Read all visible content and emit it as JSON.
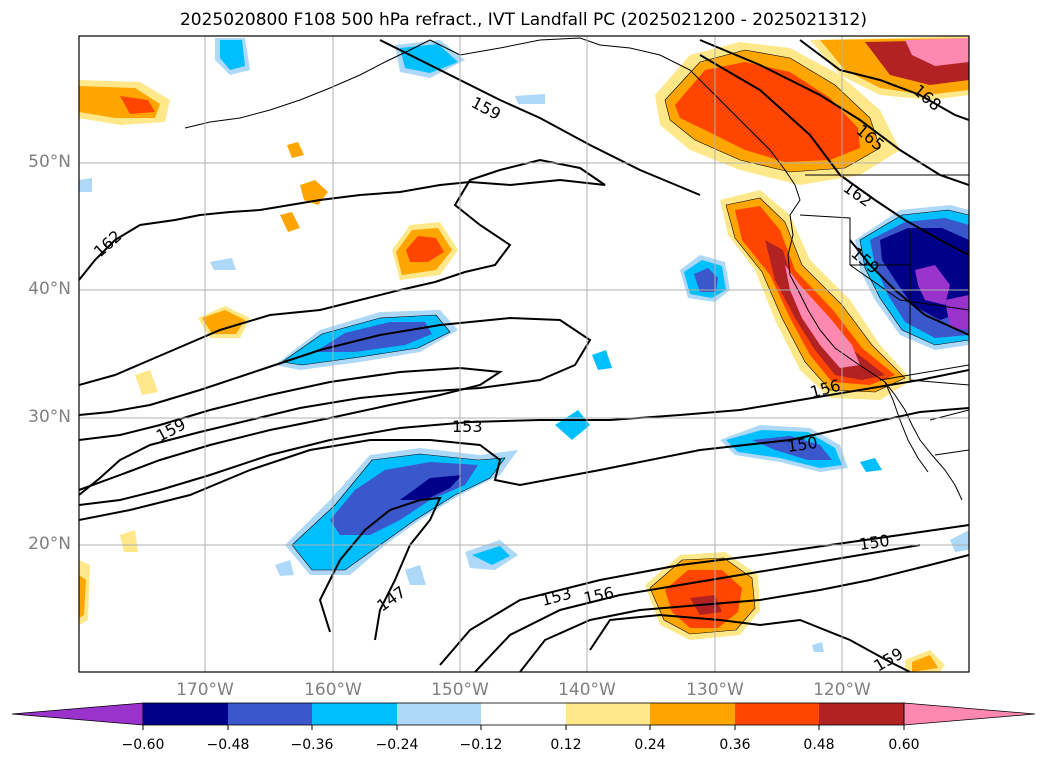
{
  "title": "2025020800 F108 500 hPa refract., IVT Landfall PC (2025021200 - 2025021312)",
  "map": {
    "lat_ticks": [
      "50°N",
      "40°N",
      "30°N",
      "20°N"
    ],
    "lon_ticks": [
      "170°W",
      "160°W",
      "150°W",
      "140°W",
      "130°W",
      "120°W"
    ],
    "contour_labels": [
      {
        "text": "159",
        "name": "contour-label-159-north"
      },
      {
        "text": "168",
        "name": "contour-label-168"
      },
      {
        "text": "165",
        "name": "contour-label-165"
      },
      {
        "text": "162",
        "name": "contour-label-162-east"
      },
      {
        "text": "162",
        "name": "contour-label-162-west"
      },
      {
        "text": "159",
        "name": "contour-label-159-east"
      },
      {
        "text": "156",
        "name": "contour-label-156-coast"
      },
      {
        "text": "159",
        "name": "contour-label-159-west"
      },
      {
        "text": "153",
        "name": "contour-label-153-mid"
      },
      {
        "text": "150",
        "name": "contour-label-150-mid"
      },
      {
        "text": "150",
        "name": "contour-label-150-south"
      },
      {
        "text": "147",
        "name": "contour-label-147"
      },
      {
        "text": "153",
        "name": "contour-label-153-south"
      },
      {
        "text": "156",
        "name": "contour-label-156-south"
      },
      {
        "text": "159",
        "name": "contour-label-159-southeast"
      }
    ]
  },
  "colorbar": {
    "labels": [
      "−0.60",
      "−0.48",
      "−0.36",
      "−0.24",
      "−0.12",
      "0.12",
      "0.24",
      "0.36",
      "0.48",
      "0.60"
    ],
    "colors": [
      "#9933cc",
      "#00008b",
      "#3a57cc",
      "#00bfff",
      "#add8f7",
      "#ffffff",
      "#ffe88a",
      "#ffa500",
      "#ff4500",
      "#b22222",
      "#ff88b0"
    ]
  }
}
